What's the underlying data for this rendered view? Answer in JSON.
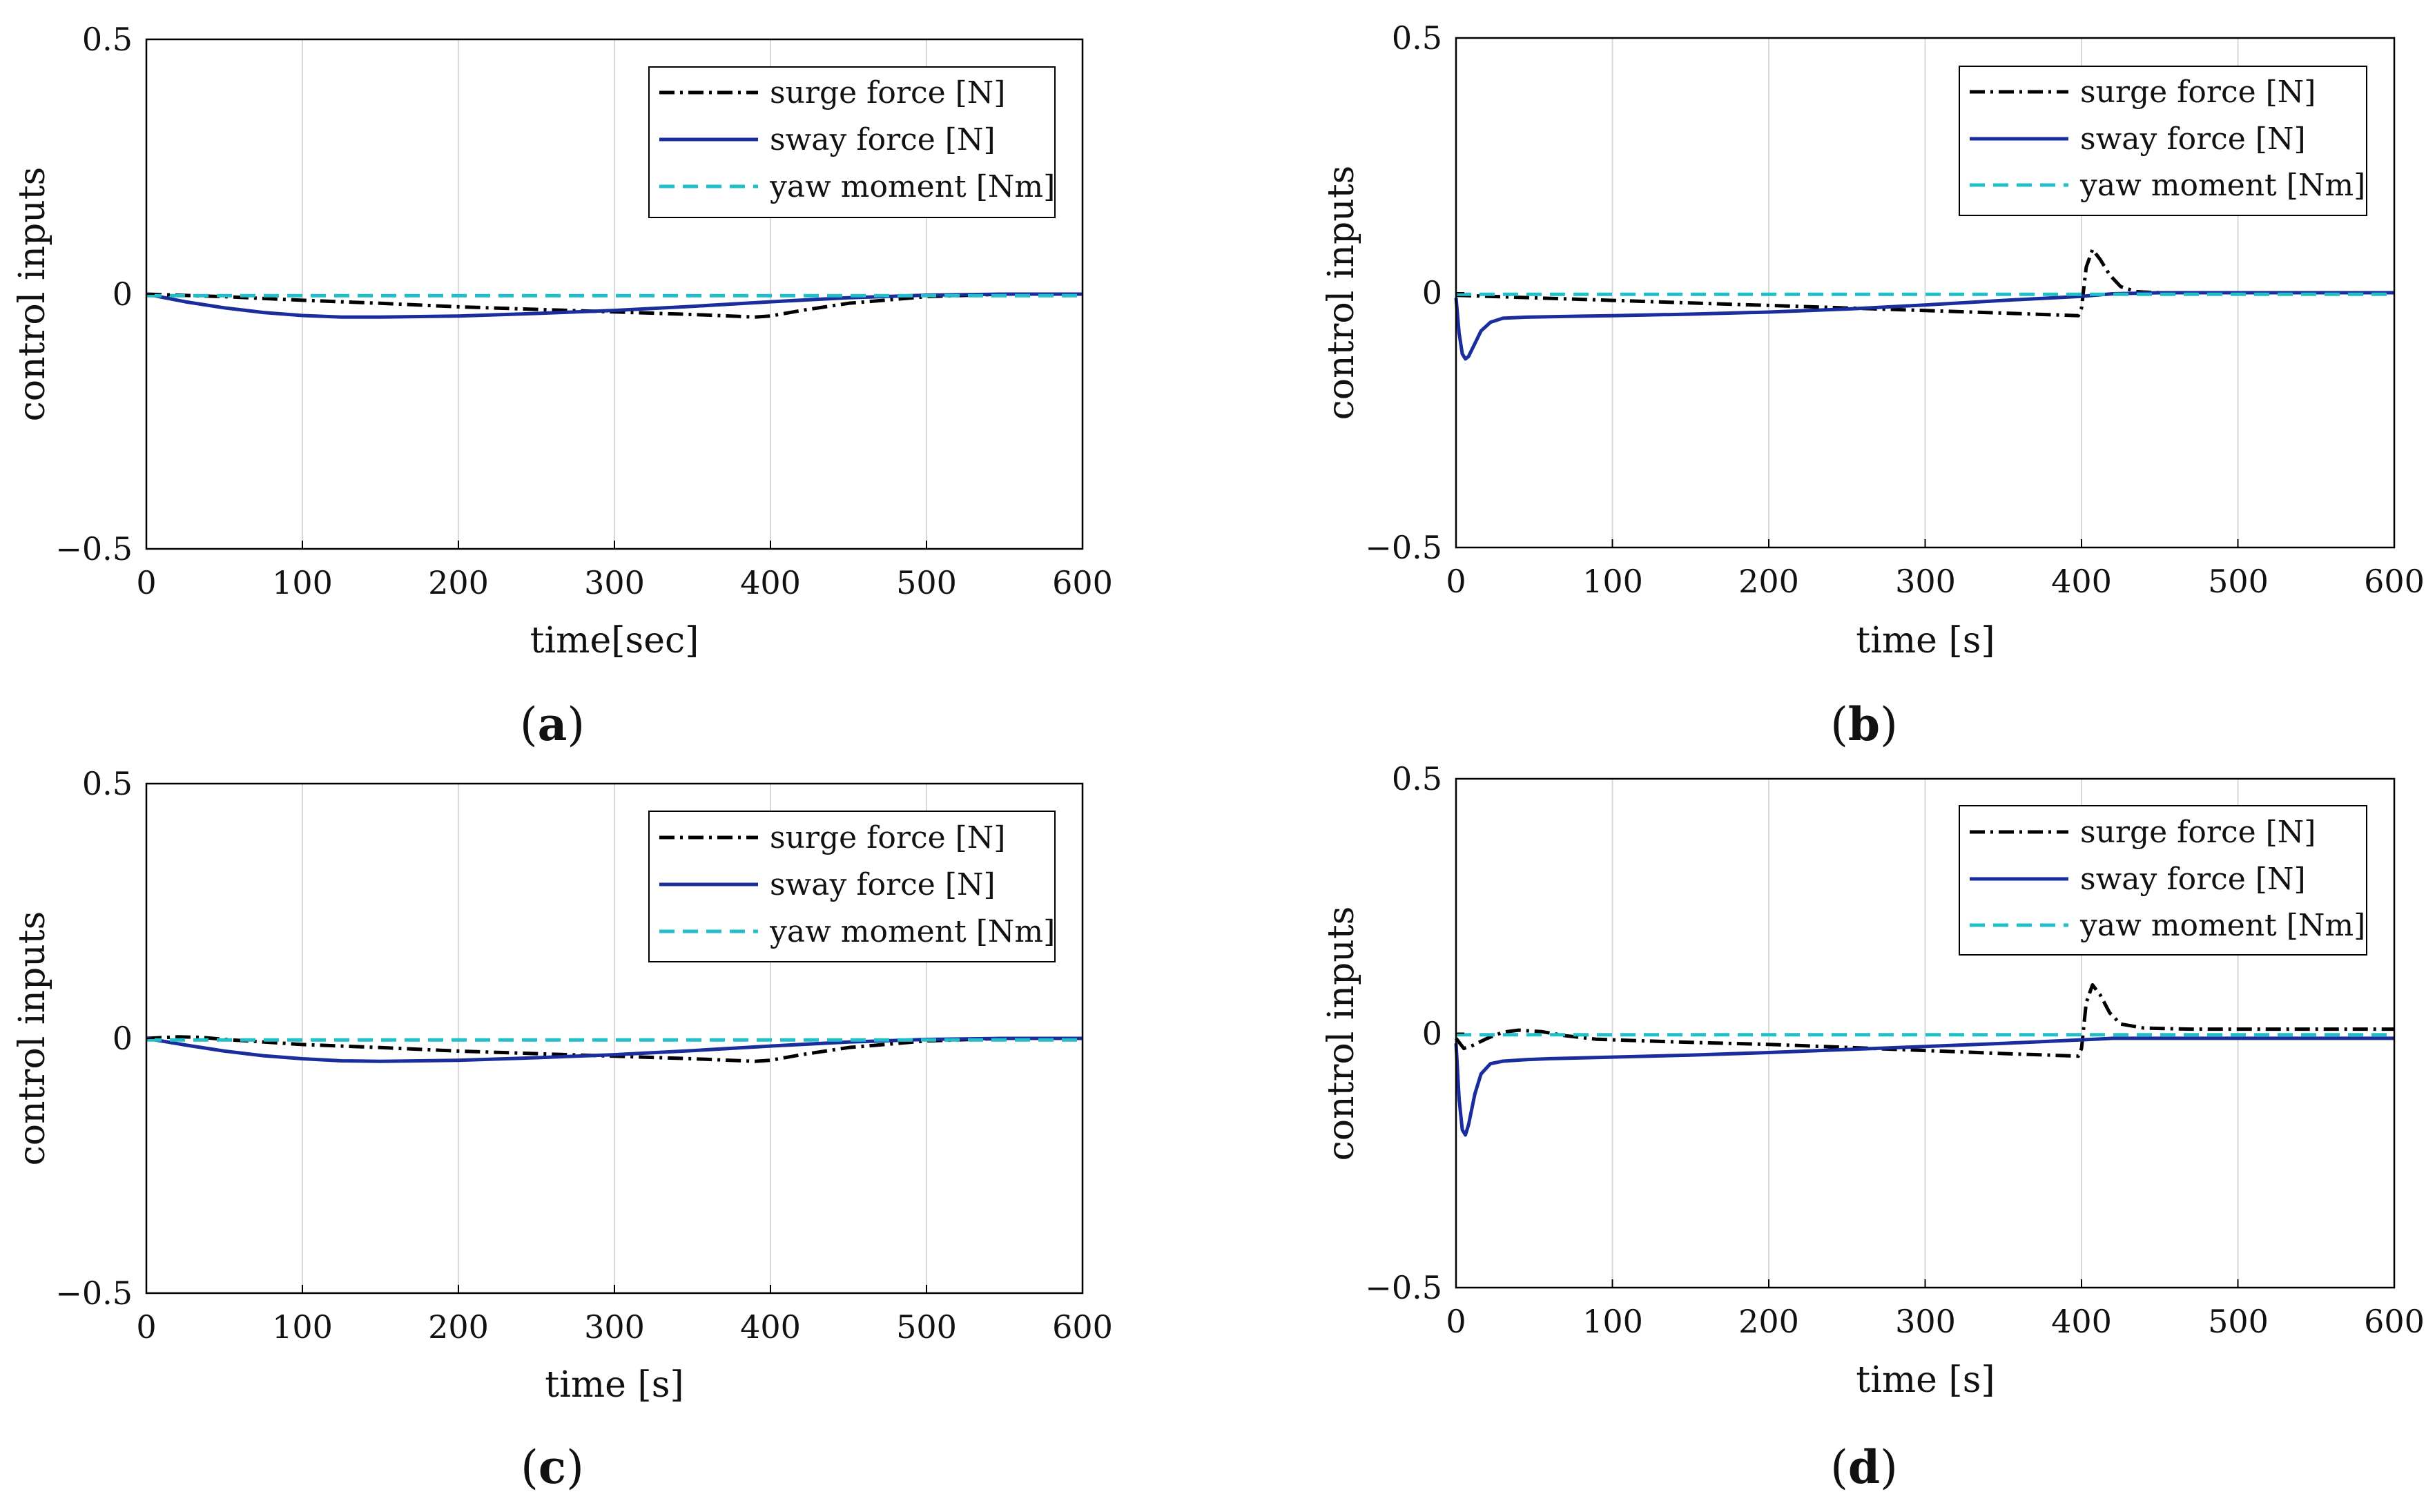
{
  "colors": {
    "surge": "#000000",
    "sway": "#1a2d9c",
    "yaw": "#22bfc8",
    "grid": "#d9d9d9",
    "axes": "#000000"
  },
  "chart_data": [
    {
      "id": "a",
      "type": "line",
      "caption": {
        "open": "(",
        "letter": "a",
        "close": ")"
      },
      "xlabel": "time[sec]",
      "ylabel": "control inputs",
      "xlim": [
        0,
        600
      ],
      "ylim": [
        -0.5,
        0.5
      ],
      "xticks": [
        "0",
        "100",
        "200",
        "300",
        "400",
        "500",
        "600"
      ],
      "yticks": [
        "0.5",
        "0",
        "−0.5"
      ],
      "legend": {
        "position": "top-right",
        "entries": [
          "surge force [N]",
          "sway force [N]",
          "yaw moment [Nm]"
        ]
      },
      "series": [
        {
          "name": "surge force [N]",
          "style": "dashdot",
          "color": "#000000",
          "x": [
            0,
            50,
            100,
            150,
            200,
            250,
            300,
            350,
            390,
            400,
            420,
            450,
            500,
            550,
            600
          ],
          "y": [
            0,
            -0.005,
            -0.012,
            -0.018,
            -0.025,
            -0.03,
            -0.035,
            -0.04,
            -0.045,
            -0.043,
            -0.032,
            -0.018,
            -0.005,
            0,
            0
          ]
        },
        {
          "name": "sway force [N]",
          "style": "solid",
          "color": "#1a2d9c",
          "x": [
            0,
            25,
            50,
            75,
            100,
            125,
            150,
            200,
            250,
            300,
            350,
            400,
            450,
            500,
            550,
            600
          ],
          "y": [
            0,
            -0.015,
            -0.027,
            -0.036,
            -0.042,
            -0.045,
            -0.045,
            -0.043,
            -0.038,
            -0.032,
            -0.024,
            -0.015,
            -0.007,
            -0.002,
            0,
            0
          ]
        },
        {
          "name": "yaw moment [Nm]",
          "style": "dashed",
          "color": "#22bfc8",
          "x": [
            0,
            600
          ],
          "y": [
            -0.003,
            -0.003
          ]
        }
      ]
    },
    {
      "id": "b",
      "type": "line",
      "caption": {
        "open": "(",
        "letter": "b",
        "close": ")"
      },
      "xlabel": "time [s]",
      "ylabel": "control inputs",
      "xlim": [
        0,
        600
      ],
      "ylim": [
        -0.5,
        0.5
      ],
      "xticks": [
        "0",
        "100",
        "200",
        "300",
        "400",
        "500",
        "600"
      ],
      "yticks": [
        "0.5",
        "0",
        "−0.5"
      ],
      "legend": {
        "position": "top-right",
        "entries": [
          "surge force [N]",
          "sway force [N]",
          "yaw moment [Nm]"
        ]
      },
      "series": [
        {
          "name": "surge force [N]",
          "style": "dashdot",
          "color": "#000000",
          "x": [
            0,
            50,
            100,
            150,
            200,
            250,
            300,
            350,
            398,
            400,
            403,
            407,
            412,
            418,
            425,
            435,
            450,
            500,
            600
          ],
          "y": [
            -0.005,
            -0.01,
            -0.015,
            -0.02,
            -0.025,
            -0.03,
            -0.035,
            -0.04,
            -0.045,
            -0.03,
            0.05,
            0.085,
            0.065,
            0.035,
            0.012,
            0.002,
            0,
            0,
            0
          ]
        },
        {
          "name": "sway force [N]",
          "style": "solid",
          "color": "#1a2d9c",
          "x": [
            0,
            2,
            4,
            6,
            8,
            12,
            16,
            22,
            30,
            45,
            60,
            100,
            150,
            200,
            250,
            300,
            350,
            400,
            420,
            450,
            500,
            600
          ],
          "y": [
            -0.01,
            -0.08,
            -0.12,
            -0.13,
            -0.125,
            -0.1,
            -0.075,
            -0.058,
            -0.05,
            -0.048,
            -0.047,
            -0.045,
            -0.042,
            -0.038,
            -0.032,
            -0.024,
            -0.015,
            -0.007,
            -0.002,
            0,
            0,
            0
          ]
        },
        {
          "name": "yaw moment [Nm]",
          "style": "dashed",
          "color": "#22bfc8",
          "x": [
            0,
            600
          ],
          "y": [
            -0.003,
            -0.003
          ]
        }
      ]
    },
    {
      "id": "c",
      "type": "line",
      "caption": {
        "open": "(",
        "letter": "c",
        "close": ")"
      },
      "xlabel": "time [s]",
      "ylabel": "control inputs",
      "xlim": [
        0,
        600
      ],
      "ylim": [
        -0.5,
        0.5
      ],
      "xticks": [
        "0",
        "100",
        "200",
        "300",
        "400",
        "500",
        "600"
      ],
      "yticks": [
        "0.5",
        "0",
        "−0.5"
      ],
      "legend": {
        "position": "top-right",
        "entries": [
          "surge force [N]",
          "sway force [N]",
          "yaw moment [Nm]"
        ]
      },
      "series": [
        {
          "name": "surge force [N]",
          "style": "dashdot",
          "color": "#000000",
          "x": [
            0,
            20,
            35,
            50,
            100,
            150,
            200,
            250,
            300,
            350,
            390,
            400,
            420,
            450,
            500,
            550,
            600
          ],
          "y": [
            0,
            0.003,
            0.002,
            -0.002,
            -0.012,
            -0.018,
            -0.025,
            -0.03,
            -0.035,
            -0.04,
            -0.045,
            -0.043,
            -0.032,
            -0.018,
            -0.005,
            0,
            0
          ]
        },
        {
          "name": "sway force [N]",
          "style": "solid",
          "color": "#1a2d9c",
          "x": [
            0,
            25,
            50,
            75,
            100,
            125,
            150,
            200,
            250,
            300,
            350,
            400,
            450,
            500,
            550,
            600
          ],
          "y": [
            0,
            -0.013,
            -0.025,
            -0.034,
            -0.04,
            -0.044,
            -0.045,
            -0.043,
            -0.038,
            -0.032,
            -0.024,
            -0.015,
            -0.007,
            -0.002,
            0,
            0
          ]
        },
        {
          "name": "yaw moment [Nm]",
          "style": "dashed",
          "color": "#22bfc8",
          "x": [
            0,
            600
          ],
          "y": [
            -0.003,
            -0.003
          ]
        }
      ]
    },
    {
      "id": "d",
      "type": "line",
      "caption": {
        "open": "(",
        "letter": "d",
        "close": ")"
      },
      "xlabel": "time [s]",
      "ylabel": "control inputs",
      "xlim": [
        0,
        600
      ],
      "ylim": [
        -0.5,
        0.5
      ],
      "xticks": [
        "0",
        "100",
        "200",
        "300",
        "400",
        "500",
        "600"
      ],
      "yticks": [
        "0.5",
        "0",
        "−0.5"
      ],
      "legend": {
        "position": "top-right",
        "entries": [
          "surge force [N]",
          "sway force [N]",
          "yaw moment [Nm]"
        ]
      },
      "series": [
        {
          "name": "surge force [N]",
          "style": "dashdot",
          "color": "#000000",
          "x": [
            0,
            5,
            10,
            20,
            30,
            40,
            55,
            70,
            90,
            120,
            150,
            200,
            250,
            300,
            350,
            398,
            400,
            403,
            407,
            412,
            418,
            425,
            440,
            470,
            500,
            600
          ],
          "y": [
            -0.01,
            -0.03,
            -0.025,
            -0.01,
            0.002,
            0.006,
            0.003,
            -0.005,
            -0.012,
            -0.015,
            -0.018,
            -0.022,
            -0.028,
            -0.034,
            -0.04,
            -0.045,
            -0.03,
            0.06,
            0.095,
            0.075,
            0.04,
            0.018,
            0.01,
            0.008,
            0.008,
            0.008
          ]
        },
        {
          "name": "sway force [N]",
          "style": "solid",
          "color": "#1a2d9c",
          "x": [
            0,
            2,
            4,
            6,
            8,
            12,
            16,
            22,
            30,
            45,
            60,
            100,
            150,
            200,
            250,
            300,
            350,
            400,
            420,
            450,
            500,
            600
          ],
          "y": [
            -0.02,
            -0.13,
            -0.19,
            -0.2,
            -0.18,
            -0.12,
            -0.08,
            -0.06,
            -0.055,
            -0.052,
            -0.05,
            -0.047,
            -0.043,
            -0.038,
            -0.032,
            -0.026,
            -0.02,
            -0.013,
            -0.01,
            -0.01,
            -0.01,
            -0.01
          ]
        },
        {
          "name": "yaw moment [Nm]",
          "style": "dashed",
          "color": "#22bfc8",
          "x": [
            0,
            600
          ],
          "y": [
            -0.003,
            -0.003
          ]
        }
      ]
    }
  ]
}
